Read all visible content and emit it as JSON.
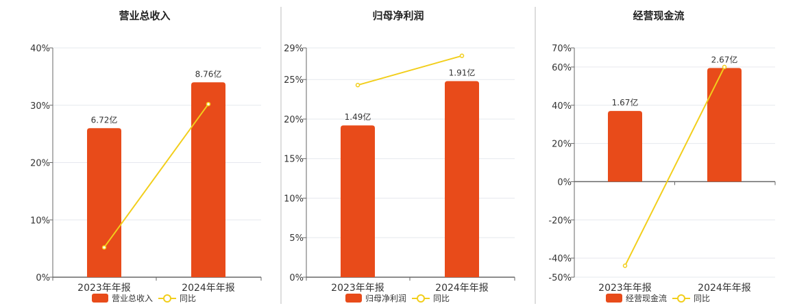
{
  "colors": {
    "bar": "#E84B1A",
    "line": "#F2CE1B",
    "grid": "#E6E8EE",
    "axis": "#666666",
    "divider": "#BBBBBB"
  },
  "chart_data": [
    {
      "type": "bar",
      "title": "营业总收入",
      "categories": [
        "2023年年报",
        "2024年年报"
      ],
      "series": [
        {
          "name": "营业总收入",
          "type": "bar",
          "values": [
            26.0,
            34.0
          ],
          "data_labels": [
            "6.72亿",
            "8.76亿"
          ]
        },
        {
          "name": "同比",
          "type": "line",
          "values": [
            5.2,
            30.2
          ]
        }
      ],
      "ylim": [
        0,
        40
      ],
      "yticks": [
        0,
        10,
        20,
        30,
        40
      ],
      "ytick_labels": [
        "0%",
        "10%",
        "20%",
        "30%",
        "40%"
      ],
      "grid": true,
      "legend": "bottom"
    },
    {
      "type": "bar",
      "title": "归母净利润",
      "categories": [
        "2023年年报",
        "2024年年报"
      ],
      "series": [
        {
          "name": "归母净利润",
          "type": "bar",
          "values": [
            19.2,
            24.8
          ],
          "data_labels": [
            "1.49亿",
            "1.91亿"
          ]
        },
        {
          "name": "同比",
          "type": "line",
          "values": [
            24.3,
            28.0
          ]
        }
      ],
      "ylim": [
        0,
        29
      ],
      "yticks": [
        0,
        5,
        10,
        15,
        20,
        25,
        29
      ],
      "ytick_labels": [
        "0%",
        "5%",
        "10%",
        "15%",
        "20%",
        "25%",
        "29%"
      ],
      "grid": true,
      "legend": "bottom"
    },
    {
      "type": "bar",
      "title": "经营现金流",
      "categories": [
        "2023年年报",
        "2024年年报"
      ],
      "series": [
        {
          "name": "经营现金流",
          "type": "bar",
          "values": [
            37.0,
            59.5
          ],
          "data_labels": [
            "1.67亿",
            "2.67亿"
          ]
        },
        {
          "name": "同比",
          "type": "line",
          "values": [
            -44.0,
            60.0
          ]
        }
      ],
      "ylim": [
        -50,
        70
      ],
      "yticks": [
        -50,
        -40,
        -20,
        0,
        20,
        40,
        60,
        70
      ],
      "ytick_labels": [
        "-50%",
        "-40%",
        "-20%",
        "0%",
        "20%",
        "40%",
        "60%",
        "70%"
      ],
      "grid": true,
      "legend": "bottom"
    }
  ]
}
